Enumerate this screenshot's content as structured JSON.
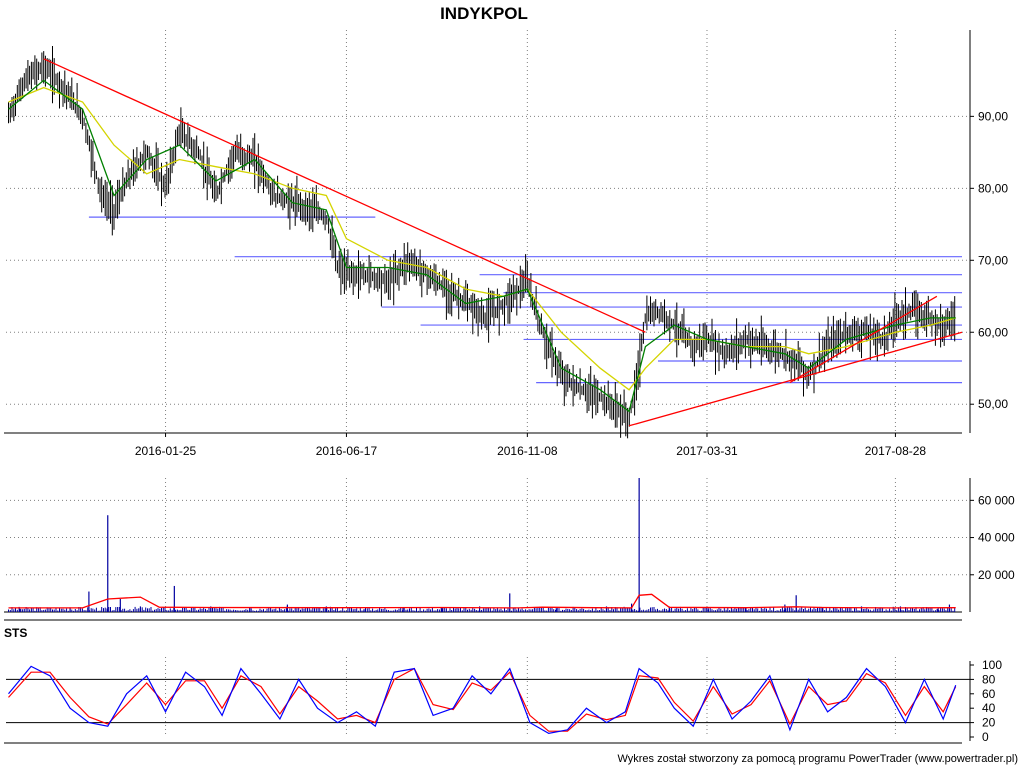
{
  "title": "INDYKPOL",
  "footer": "Wykres został stworzony za pomocą programu PowerTrader (www.powertrader.pl)",
  "colors": {
    "candle": "#000000",
    "ma_short": "#008000",
    "ma_long": "#d4d400",
    "trendline": "#ff0000",
    "support_lines": "#6666ff",
    "volume": "#0000a0",
    "volume_ma": "#ff0000",
    "sts_k": "#0000ff",
    "sts_d": "#ff0000",
    "grid": "#808080"
  },
  "chart_data": [
    {
      "type": "line",
      "panel": "price",
      "title": "INDYKPOL",
      "x_range": [
        "2015-09-20",
        "2017-10-20"
      ],
      "ylim": [
        46,
        102
      ],
      "grid": true,
      "y_ticks": [
        50,
        60,
        70,
        80,
        90
      ],
      "y_tick_labels": [
        "50,00",
        "60,00",
        "70,00",
        "80,00",
        "90,00"
      ],
      "x_ticks": [
        "2016-01-25",
        "2016-06-17",
        "2016-11-08",
        "2017-03-31",
        "2017-08-28"
      ],
      "series": [
        {
          "role": "close",
          "x": [
            "2015-09-22",
            "2015-10-05",
            "2015-10-20",
            "2015-11-05",
            "2015-11-20",
            "2015-12-05",
            "2015-12-15",
            "2015-12-28",
            "2016-01-10",
            "2016-01-25",
            "2016-02-05",
            "2016-02-20",
            "2016-03-05",
            "2016-03-20",
            "2016-04-05",
            "2016-04-20",
            "2016-05-05",
            "2016-05-20",
            "2016-06-01",
            "2016-06-10",
            "2016-06-17",
            "2016-07-05",
            "2016-07-20",
            "2016-08-05",
            "2016-08-20",
            "2016-09-05",
            "2016-09-20",
            "2016-10-05",
            "2016-10-20",
            "2016-11-01",
            "2016-11-08",
            "2016-11-20",
            "2016-12-05",
            "2016-12-20",
            "2017-01-05",
            "2017-01-20",
            "2017-01-28",
            "2017-02-02",
            "2017-02-10",
            "2017-02-20",
            "2017-03-05",
            "2017-03-20",
            "2017-03-31",
            "2017-04-15",
            "2017-05-01",
            "2017-05-15",
            "2017-06-01",
            "2017-06-10",
            "2017-06-20",
            "2017-07-05",
            "2017-07-20",
            "2017-08-05",
            "2017-08-20",
            "2017-08-28",
            "2017-09-10",
            "2017-09-25",
            "2017-10-05",
            "2017-10-15"
          ],
          "values": [
            90,
            95,
            97,
            94,
            90,
            79,
            77,
            82,
            85,
            80,
            88,
            85,
            79,
            85,
            84,
            79,
            78,
            77,
            76,
            69,
            68,
            68,
            67,
            70,
            68,
            66,
            64,
            62,
            64,
            66,
            67,
            60,
            54,
            52,
            51,
            49,
            48,
            52,
            62,
            63,
            61,
            58,
            59,
            57,
            59,
            58,
            57,
            56,
            54,
            58,
            60,
            60,
            59,
            62,
            63,
            62,
            61,
            62
          ]
        },
        {
          "role": "ma_short",
          "x": [
            "2015-09-22",
            "2015-10-20",
            "2015-11-20",
            "2015-12-15",
            "2016-01-10",
            "2016-02-05",
            "2016-03-05",
            "2016-04-05",
            "2016-05-05",
            "2016-06-01",
            "2016-06-17",
            "2016-07-20",
            "2016-08-20",
            "2016-09-20",
            "2016-10-20",
            "2016-11-08",
            "2016-12-05",
            "2017-01-05",
            "2017-01-28",
            "2017-02-10",
            "2017-03-05",
            "2017-03-31",
            "2017-05-01",
            "2017-06-01",
            "2017-06-20",
            "2017-07-20",
            "2017-08-28",
            "2017-09-25",
            "2017-10-15"
          ],
          "values": [
            91,
            95,
            91,
            79,
            84,
            86,
            81,
            84,
            78,
            77,
            69,
            69,
            68,
            64,
            65,
            66,
            55,
            52,
            49,
            58,
            61,
            59,
            58,
            57,
            55,
            59,
            61,
            62,
            62
          ]
        },
        {
          "role": "ma_long",
          "x": [
            "2015-09-22",
            "2015-10-20",
            "2015-11-20",
            "2015-12-15",
            "2016-01-10",
            "2016-02-05",
            "2016-03-05",
            "2016-04-05",
            "2016-05-05",
            "2016-06-01",
            "2016-06-17",
            "2016-07-20",
            "2016-08-20",
            "2016-09-20",
            "2016-10-20",
            "2016-11-08",
            "2016-12-05",
            "2017-01-05",
            "2017-01-28",
            "2017-02-10",
            "2017-03-05",
            "2017-03-31",
            "2017-05-01",
            "2017-06-01",
            "2017-06-20",
            "2017-07-20",
            "2017-08-28",
            "2017-09-25",
            "2017-10-15"
          ],
          "values": [
            92,
            94,
            92,
            86,
            82,
            84,
            83,
            82,
            80,
            79,
            73,
            70,
            69,
            66,
            65,
            66,
            60,
            55,
            52,
            55,
            59,
            59,
            58,
            58,
            57,
            58,
            60,
            61,
            62
          ]
        }
      ],
      "trendlines": [
        {
          "x": [
            "2015-10-20",
            "2017-02-10"
          ],
          "y": [
            98,
            60
          ]
        },
        {
          "x": [
            "2017-01-28",
            "2017-10-20"
          ],
          "y": [
            47,
            60
          ]
        },
        {
          "x": [
            "2017-06-05",
            "2017-09-30"
          ],
          "y": [
            53,
            65
          ]
        }
      ],
      "support_resistance": [
        {
          "y": 76,
          "x": [
            "2015-11-25",
            "2016-07-10"
          ]
        },
        {
          "y": 70.5,
          "x": [
            "2016-03-20",
            "2017-10-20"
          ]
        },
        {
          "y": 68,
          "x": [
            "2016-10-01",
            "2017-10-20"
          ]
        },
        {
          "y": 65.5,
          "x": [
            "2016-10-20",
            "2017-10-20"
          ]
        },
        {
          "y": 63.5,
          "x": [
            "2016-07-15",
            "2017-10-20"
          ]
        },
        {
          "y": 61,
          "x": [
            "2016-08-15",
            "2017-10-20"
          ]
        },
        {
          "y": 59,
          "x": [
            "2016-11-05",
            "2017-10-20"
          ]
        },
        {
          "y": 56,
          "x": [
            "2017-02-20",
            "2017-10-20"
          ]
        },
        {
          "y": 53,
          "x": [
            "2016-11-15",
            "2017-10-20"
          ]
        }
      ]
    },
    {
      "type": "bar",
      "panel": "volume",
      "ylim": [
        0,
        72000
      ],
      "y_ticks": [
        20000,
        40000,
        60000
      ],
      "y_tick_labels": [
        "20 000",
        "40 000",
        "60 000"
      ],
      "grid": true,
      "series": [
        {
          "role": "volume",
          "x": [
            "2015-10-01",
            "2015-11-10",
            "2015-11-25",
            "2015-12-10",
            "2015-12-20",
            "2016-01-05",
            "2016-02-01",
            "2016-03-01",
            "2016-04-01",
            "2016-05-01",
            "2016-06-01",
            "2016-07-01",
            "2016-08-01",
            "2016-09-01",
            "2016-10-01",
            "2016-10-25",
            "2016-12-01",
            "2017-01-10",
            "2017-01-30",
            "2017-02-05",
            "2017-03-01",
            "2017-04-01",
            "2017-05-01",
            "2017-06-01",
            "2017-06-10",
            "2017-07-01",
            "2017-08-01",
            "2017-09-01",
            "2017-10-01",
            "2017-10-10"
          ],
          "values": [
            1800,
            2500,
            11000,
            52000,
            7000,
            3000,
            14000,
            3000,
            2500,
            4000,
            3000,
            1500,
            2500,
            2000,
            3000,
            10000,
            2000,
            3000,
            4500,
            72000,
            3000,
            2000,
            2500,
            4000,
            9000,
            2000,
            3000,
            3000,
            2000,
            4000
          ]
        },
        {
          "role": "volume_ma",
          "x": [
            "2015-09-22",
            "2015-11-20",
            "2015-12-10",
            "2016-01-05",
            "2016-01-20",
            "2016-03-01",
            "2016-06-01",
            "2016-09-01",
            "2016-11-01",
            "2016-11-20",
            "2017-01-01",
            "2017-01-30",
            "2017-02-05",
            "2017-02-15",
            "2017-03-01",
            "2017-05-01",
            "2017-06-10",
            "2017-07-01",
            "2017-09-01",
            "2017-10-15"
          ],
          "values": [
            2200,
            2200,
            7000,
            8000,
            2600,
            2400,
            2300,
            2400,
            2200,
            2600,
            2300,
            2200,
            9000,
            9500,
            2500,
            2300,
            2800,
            2400,
            2200,
            2300
          ]
        }
      ]
    },
    {
      "type": "line",
      "panel": "oscillator",
      "title": "STS",
      "ylim": [
        0,
        100
      ],
      "y_ticks": [
        0,
        20,
        40,
        60,
        80,
        100
      ],
      "y_tick_labels": [
        "0",
        "20",
        "40",
        "60",
        "80",
        "100"
      ],
      "reference_lines": [
        20,
        80
      ],
      "grid": true,
      "series": [
        {
          "role": "sts_k",
          "x": [
            "2015-09-22",
            "2015-10-10",
            "2015-10-25",
            "2015-11-10",
            "2015-11-25",
            "2015-12-10",
            "2015-12-25",
            "2016-01-10",
            "2016-01-25",
            "2016-02-10",
            "2016-02-25",
            "2016-03-10",
            "2016-03-25",
            "2016-04-10",
            "2016-04-25",
            "2016-05-10",
            "2016-05-25",
            "2016-06-10",
            "2016-06-25",
            "2016-07-10",
            "2016-07-25",
            "2016-08-10",
            "2016-08-25",
            "2016-09-10",
            "2016-09-25",
            "2016-10-10",
            "2016-10-25",
            "2016-11-10",
            "2016-11-25",
            "2016-12-10",
            "2016-12-25",
            "2017-01-10",
            "2017-01-25",
            "2017-02-05",
            "2017-02-20",
            "2017-03-05",
            "2017-03-20",
            "2017-04-05",
            "2017-04-20",
            "2017-05-05",
            "2017-05-20",
            "2017-06-05",
            "2017-06-20",
            "2017-07-05",
            "2017-07-20",
            "2017-08-05",
            "2017-08-20",
            "2017-09-05",
            "2017-09-20",
            "2017-10-05",
            "2017-10-15"
          ],
          "values": [
            60,
            98,
            85,
            40,
            20,
            15,
            60,
            85,
            35,
            90,
            70,
            30,
            95,
            60,
            25,
            80,
            40,
            20,
            35,
            15,
            90,
            95,
            30,
            40,
            85,
            60,
            95,
            20,
            5,
            10,
            40,
            20,
            35,
            95,
            75,
            40,
            15,
            80,
            25,
            50,
            85,
            10,
            80,
            35,
            55,
            95,
            70,
            20,
            80,
            25,
            72
          ]
        },
        {
          "role": "sts_d",
          "x": [
            "2015-09-22",
            "2015-10-10",
            "2015-10-25",
            "2015-11-10",
            "2015-11-25",
            "2015-12-10",
            "2015-12-25",
            "2016-01-10",
            "2016-01-25",
            "2016-02-10",
            "2016-02-25",
            "2016-03-10",
            "2016-03-25",
            "2016-04-10",
            "2016-04-25",
            "2016-05-10",
            "2016-05-25",
            "2016-06-10",
            "2016-06-25",
            "2016-07-10",
            "2016-07-25",
            "2016-08-10",
            "2016-08-25",
            "2016-09-10",
            "2016-09-25",
            "2016-10-10",
            "2016-10-25",
            "2016-11-10",
            "2016-11-25",
            "2016-12-10",
            "2016-12-25",
            "2017-01-10",
            "2017-01-25",
            "2017-02-05",
            "2017-02-20",
            "2017-03-05",
            "2017-03-20",
            "2017-04-05",
            "2017-04-20",
            "2017-05-05",
            "2017-05-20",
            "2017-06-05",
            "2017-06-20",
            "2017-07-05",
            "2017-07-20",
            "2017-08-05",
            "2017-08-20",
            "2017-09-05",
            "2017-09-20",
            "2017-10-05",
            "2017-10-15"
          ],
          "values": [
            55,
            90,
            90,
            55,
            28,
            18,
            45,
            75,
            45,
            78,
            78,
            40,
            85,
            70,
            32,
            70,
            50,
            25,
            30,
            20,
            80,
            95,
            45,
            38,
            75,
            65,
            90,
            30,
            8,
            8,
            32,
            24,
            30,
            85,
            82,
            48,
            22,
            70,
            32,
            45,
            78,
            18,
            70,
            45,
            50,
            88,
            75,
            30,
            70,
            35,
            70
          ]
        }
      ]
    }
  ]
}
